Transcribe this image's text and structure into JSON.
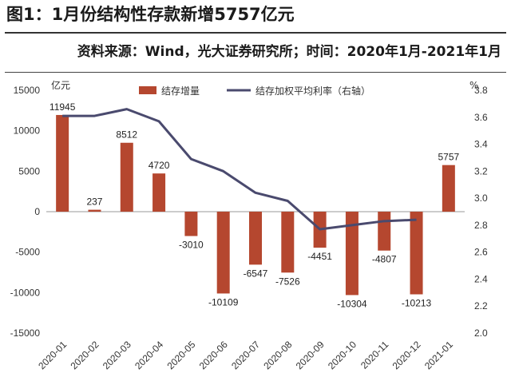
{
  "header": {
    "title": "图1：1月份结构性存款新增5757亿元",
    "source": "资料来源：Wind，光大证券研究所；时间：2020年1月-2021年1月"
  },
  "chart_data": {
    "type": "bar+line",
    "categories": [
      "2020-01",
      "2020-02",
      "2020-03",
      "2020-04",
      "2020-05",
      "2020-06",
      "2020-07",
      "2020-08",
      "2020-09",
      "2020-10",
      "2020-11",
      "2020-12",
      "2021-01"
    ],
    "series": [
      {
        "name": "结存增量",
        "type": "bar",
        "axis": "left",
        "color": "#b5472f",
        "values": [
          11945,
          237,
          8512,
          4720,
          -3010,
          -10109,
          -6547,
          -7526,
          -4451,
          -10304,
          -4807,
          -10213,
          5757
        ],
        "labels": [
          "11945",
          "237",
          "8512",
          "4720",
          "-3010",
          "-10109",
          "-6547",
          "-7526",
          "-4451",
          "-10304",
          "-4807",
          "-10213",
          "5757"
        ]
      },
      {
        "name": "结存加权平均利率（右轴）",
        "type": "line",
        "axis": "right",
        "color": "#4a4a6e",
        "values": [
          3.61,
          3.61,
          3.66,
          3.57,
          3.29,
          3.2,
          3.04,
          2.98,
          2.77,
          2.8,
          2.83,
          2.84,
          null
        ]
      }
    ],
    "left_axis": {
      "unit": "亿元",
      "ylim": [
        -15000,
        15000
      ],
      "ticks": [
        "15000",
        "10000",
        "5000",
        "0",
        "-5000",
        "-10000",
        "-15000"
      ]
    },
    "right_axis": {
      "unit": "%",
      "ylim": [
        2.0,
        3.8
      ],
      "ticks": [
        "3.8",
        "3.6",
        "3.4",
        "3.2",
        "3.0",
        "2.8",
        "2.6",
        "2.4",
        "2.2",
        "2.0"
      ]
    },
    "legend_position": "top",
    "grid": false
  }
}
